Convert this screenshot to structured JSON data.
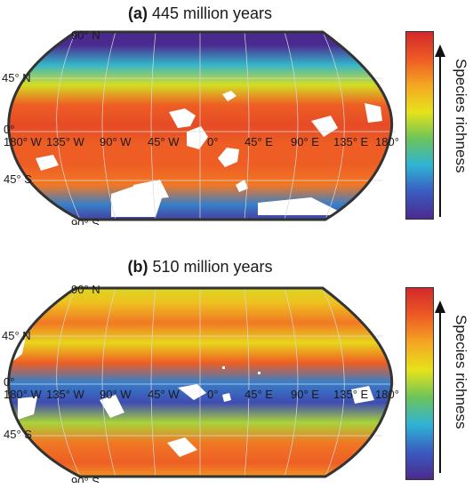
{
  "panels": [
    {
      "id": "a",
      "tag": "(a)",
      "title": "445 million years",
      "lat_labels": [
        "90° N",
        "45° N",
        "0°",
        "45° S",
        "90° S"
      ],
      "lon_labels": [
        "180° W",
        "135° W",
        "90° W",
        "45° W",
        "0°",
        "45° E",
        "90° E",
        "135° E",
        "180°"
      ],
      "colorbar_label": "Species richness",
      "richness_by_latitude": [
        0.0,
        0.0,
        0.3,
        0.55,
        0.85,
        0.9,
        0.85,
        0.85,
        0.8,
        0.2,
        0.0
      ]
    },
    {
      "id": "b",
      "tag": "(b)",
      "title": "510 million years",
      "lat_labels": [
        "90° N",
        "45° N",
        "0°",
        "45° S",
        "90° S"
      ],
      "lon_labels": [
        "180° W",
        "135° W",
        "90° W",
        "45° W",
        "0°",
        "45° E",
        "90° E",
        "135° E",
        "180°"
      ],
      "colorbar_label": "Species richness",
      "richness_by_latitude": [
        0.55,
        0.65,
        0.8,
        0.6,
        0.85,
        0.2,
        0.1,
        0.5,
        0.8,
        0.85,
        0.7
      ]
    }
  ],
  "colormap": [
    "#4b2a8f",
    "#3a5bc0",
    "#2fb3d6",
    "#6cc45a",
    "#e6e21a",
    "#f5a623",
    "#ee5a24",
    "#d3282b"
  ]
}
